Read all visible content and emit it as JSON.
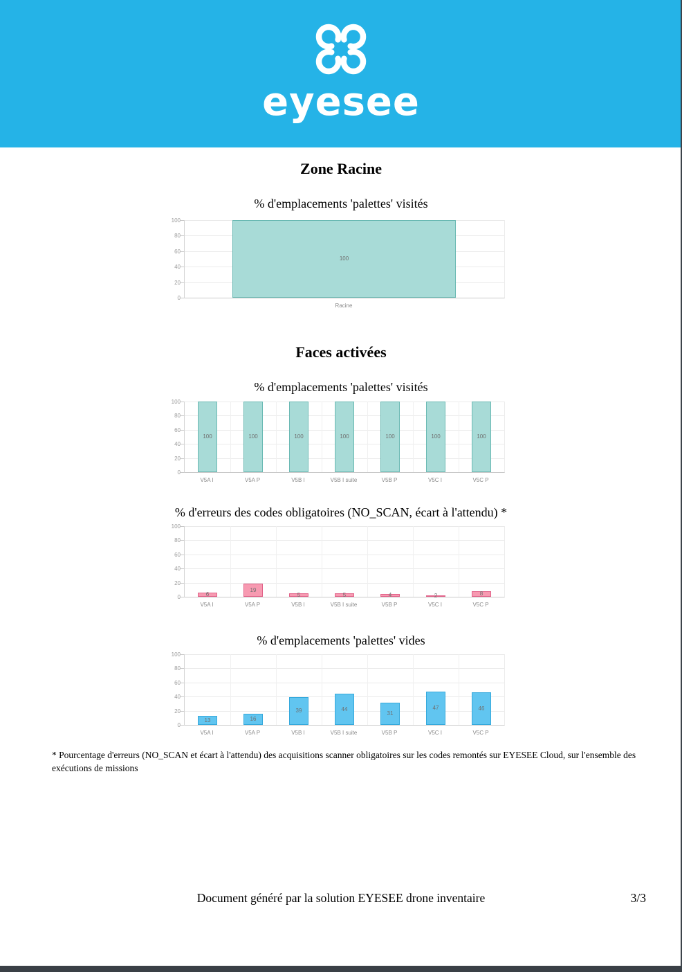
{
  "header": {
    "wordmark": "eyesee",
    "logo_icon": "eyesee-clover-logo",
    "background_color": "#25b3e7"
  },
  "headings": {
    "zone": "Zone Racine",
    "faces": "Faces activées"
  },
  "colors": {
    "header_cyan": "#25b3e7",
    "teal_fill": "#a8dbd7",
    "teal_border": "#6ab9b3",
    "pink_fill": "#f79ab1",
    "pink_border": "#e26289",
    "blue_fill": "#61c5f0",
    "blue_border": "#35a9dc",
    "value_label_gray": "#6f6f6f",
    "page_edge_dark": "#3a4046"
  },
  "chart_data": [
    {
      "type": "bar",
      "title": "% d'emplacements 'palettes' visités",
      "categories": [
        "Racine"
      ],
      "values": [
        100
      ],
      "ylim": [
        0,
        100
      ],
      "yticks": [
        0,
        20,
        40,
        60,
        80,
        100
      ],
      "xlabel": "",
      "ylabel": "",
      "grid": true,
      "legend": "none",
      "fill": "#a8dbd7",
      "border": "#6ab9b3"
    },
    {
      "type": "bar",
      "title": "% d'emplacements 'palettes' visités",
      "categories": [
        "V5A I",
        "V5A P",
        "V5B I",
        "V5B I suite",
        "V5B P",
        "V5C I",
        "V5C P"
      ],
      "values": [
        100,
        100,
        100,
        100,
        100,
        100,
        100
      ],
      "ylim": [
        0,
        100
      ],
      "yticks": [
        0,
        20,
        40,
        60,
        80,
        100
      ],
      "xlabel": "",
      "ylabel": "",
      "grid": true,
      "legend": "none",
      "fill": "#a8dbd7",
      "border": "#6ab9b3"
    },
    {
      "type": "bar",
      "title": "% d'erreurs des codes obligatoires (NO_SCAN, écart à l'attendu) *",
      "categories": [
        "V5A I",
        "V5A P",
        "V5B I",
        "V5B I suite",
        "V5B P",
        "V5C I",
        "V5C P"
      ],
      "values": [
        6,
        19,
        5,
        5,
        4,
        2,
        8
      ],
      "ylim": [
        0,
        100
      ],
      "yticks": [
        0,
        20,
        40,
        60,
        80,
        100
      ],
      "xlabel": "",
      "ylabel": "",
      "grid": true,
      "legend": "none",
      "fill": "#f79ab1",
      "border": "#e26289"
    },
    {
      "type": "bar",
      "title": "% d'emplacements 'palettes' vides",
      "categories": [
        "V5A I",
        "V5A P",
        "V5B I",
        "V5B I suite",
        "V5B P",
        "V5C I",
        "V5C P"
      ],
      "values": [
        13,
        16,
        39,
        44,
        31,
        47,
        46
      ],
      "ylim": [
        0,
        100
      ],
      "yticks": [
        0,
        20,
        40,
        60,
        80,
        100
      ],
      "xlabel": "",
      "ylabel": "",
      "grid": true,
      "legend": "none",
      "fill": "#61c5f0",
      "border": "#35a9dc"
    }
  ],
  "footnote": "* Pourcentage d'erreurs (NO_SCAN et écart à l'attendu) des acquisitions scanner obligatoires sur les codes remontés sur EYESEE Cloud, sur l'ensemble des exécutions de missions",
  "footer": {
    "text": "Document généré par la solution EYESEE drone inventaire",
    "page_number": "3/3"
  }
}
